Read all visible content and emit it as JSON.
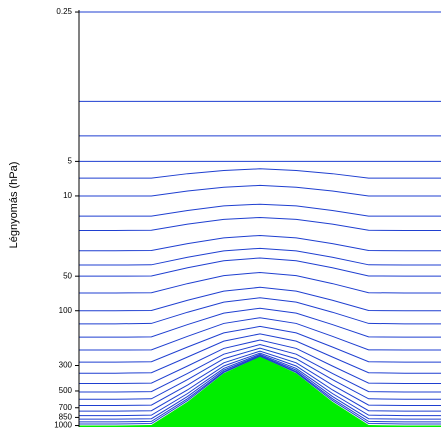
{
  "chart_data": {
    "type": "line",
    "y_label": "Légnyomás (hPa)",
    "yscale": "log",
    "ylim": [
      1030,
      0.24
    ],
    "yticks": [
      0.25,
      5,
      10,
      50,
      100,
      300,
      500,
      700,
      850,
      1000
    ],
    "categories": [
      null,
      null,
      null,
      null,
      null,
      null,
      null,
      null,
      null,
      null,
      null
    ],
    "line_color": "#1f3fd0",
    "terrain": {
      "color": "#00ee00",
      "values": [
        1000,
        1000,
        990,
        620,
        350,
        250,
        350,
        620,
        990,
        1000,
        1000
      ]
    },
    "series": [
      {
        "values": [
          0.25,
          0.25,
          0.25,
          0.25,
          0.25,
          0.25,
          0.25,
          0.25,
          0.25,
          0.25,
          0.25
        ]
      },
      {
        "values": [
          1.5,
          1.5,
          1.5,
          1.5,
          1.5,
          1.5,
          1.5,
          1.5,
          1.5,
          1.5,
          1.5
        ]
      },
      {
        "values": [
          3,
          3,
          3,
          3,
          3,
          3,
          3,
          3,
          3,
          3,
          3
        ]
      },
      {
        "values": [
          5,
          5,
          5,
          5,
          5,
          5,
          5,
          5,
          5,
          5,
          5
        ]
      },
      {
        "values": [
          7,
          7,
          7,
          6.4,
          6,
          5.8,
          6,
          6.4,
          7,
          7,
          7
        ]
      },
      {
        "values": [
          10,
          10,
          10,
          9.05,
          8.4,
          8.1,
          8.4,
          9.05,
          10,
          10,
          10
        ]
      },
      {
        "values": [
          15,
          15,
          15,
          13.4,
          12.2,
          11.8,
          12.2,
          13.4,
          15,
          15,
          15
        ]
      },
      {
        "values": [
          20,
          20,
          19.9,
          17.6,
          16,
          15.4,
          16,
          17.6,
          19.9,
          20,
          20
        ]
      },
      {
        "values": [
          30,
          30,
          29.9,
          26,
          23.2,
          22.1,
          23.2,
          26,
          29.9,
          30,
          30
        ]
      },
      {
        "values": [
          40,
          40,
          39.8,
          34.2,
          30.1,
          28.6,
          30.1,
          34.2,
          39.8,
          40,
          40
        ]
      },
      {
        "values": [
          50,
          50,
          49.8,
          42.2,
          36.7,
          34.7,
          36.7,
          42.2,
          49.8,
          50,
          50
        ]
      },
      {
        "values": [
          70,
          70,
          69.7,
          58,
          49.5,
          46.4,
          49.5,
          58,
          69.7,
          70,
          70
        ]
      },
      {
        "values": [
          100,
          100,
          99.5,
          81,
          67.5,
          62.5,
          67.5,
          81,
          99.5,
          100,
          100
        ]
      },
      {
        "values": [
          130,
          130,
          129,
          103,
          84.2,
          77.1,
          84.2,
          103,
          129,
          130,
          130
        ]
      },
      {
        "values": [
          170,
          170,
          169,
          132,
          105,
          95.1,
          105,
          132,
          169,
          170,
          170
        ]
      },
      {
        "values": [
          220,
          220,
          219,
          167,
          129,
          115,
          129,
          167,
          219,
          220,
          220
        ]
      },
      {
        "values": [
          280,
          280,
          278,
          207,
          156,
          137,
          156,
          207,
          278,
          280,
          280
        ]
      },
      {
        "values": [
          350,
          350,
          347,
          253,
          184,
          159,
          184,
          253,
          347,
          350,
          350
        ]
      },
      {
        "values": [
          430,
          430,
          427,
          303,
          213,
          180,
          213,
          303,
          427,
          430,
          430
        ]
      },
      {
        "values": [
          510,
          510,
          506,
          352,
          239,
          197,
          239,
          352,
          506,
          510,
          510
        ]
      },
      {
        "values": [
          590,
          590,
          585,
          398,
          262,
          212,
          262,
          398,
          585,
          590,
          590
        ]
      },
      {
        "values": [
          670,
          670,
          664,
          444,
          284,
          225,
          284,
          444,
          664,
          670,
          670
        ]
      },
      {
        "values": [
          750,
          750,
          743,
          489,
          303,
          234,
          303,
          489,
          743,
          750,
          750
        ]
      },
      {
        "values": [
          820,
          820,
          812,
          526,
          318,
          240,
          318,
          526,
          812,
          820,
          820
        ]
      },
      {
        "values": [
          880,
          880,
          872,
          558,
          329,
          245,
          329,
          558,
          872,
          880,
          880
        ]
      },
      {
        "values": [
          930,
          930,
          921,
          584,
          339,
          248,
          339,
          584,
          921,
          930,
          930
        ]
      },
      {
        "values": [
          970,
          970,
          960,
          605,
          345,
          249,
          345,
          605,
          960,
          970,
          970
        ]
      }
    ]
  }
}
